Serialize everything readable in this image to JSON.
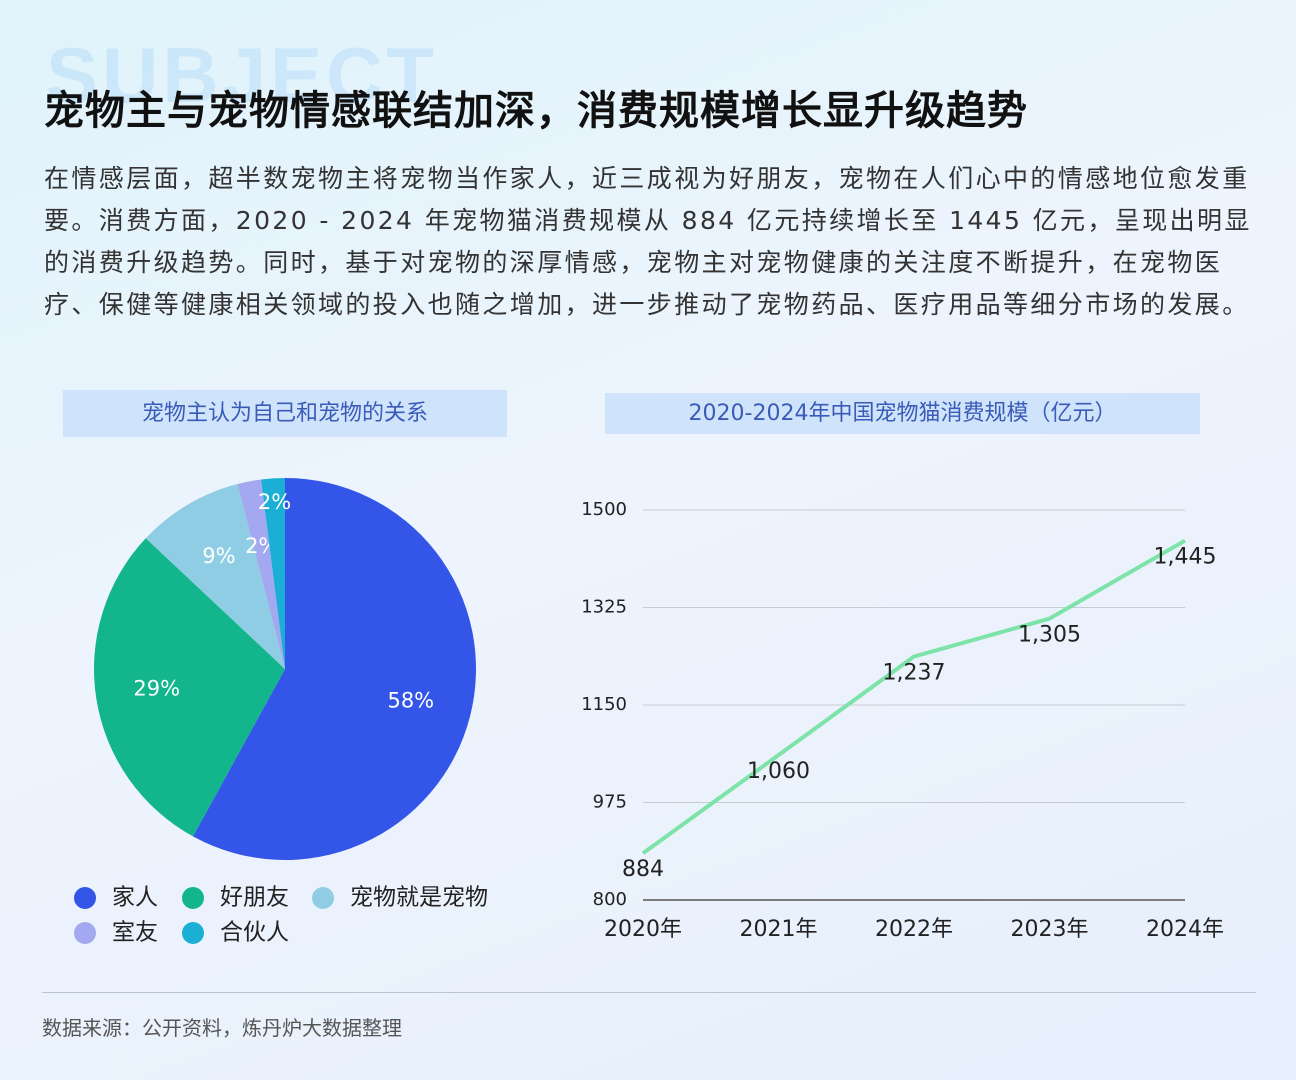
{
  "header": {
    "watermark": "SUBJECT",
    "title": "宠物主与宠物情感联结加深，消费规模增长显升级趋势",
    "paragraph": "在情感层面，超半数宠物主将宠物当作家人，近三成视为好朋友，宠物在人们心中的情感地位愈发重要。消费方面，2020 - 2024 年宠物猫消费规模从 884 亿元持续增长至 1445 亿元，呈现出明显的消费升级趋势。同时，基于对宠物的深厚情感，宠物主对宠物健康的关注度不断提升，在宠物医疗、保健等健康相关领域的投入也随之增加，进一步推动了宠物药品、医疗用品等细分市场的发展。"
  },
  "chart_data": [
    {
      "type": "pie",
      "title": "宠物主认为自己和宠物的关系",
      "categories": [
        "家人",
        "好朋友",
        "宠物就是宠物",
        "室友",
        "合伙人"
      ],
      "values": [
        58,
        29,
        9,
        2,
        2
      ],
      "value_labels": [
        "58%",
        "29%",
        "9%",
        "2%",
        "2%"
      ],
      "colors": [
        "#3355e8",
        "#13b58c",
        "#8ecde3",
        "#a3a8f0",
        "#1bafd6"
      ]
    },
    {
      "type": "line",
      "title": "2020-2024年中国宠物猫消费规模（亿元）",
      "categories": [
        "2020年",
        "2021年",
        "2022年",
        "2023年",
        "2024年"
      ],
      "values": [
        884,
        1060,
        1237,
        1305,
        1445
      ],
      "value_labels": [
        "884",
        "1,060",
        "1,237",
        "1,305",
        "1,445"
      ],
      "color": "#7de3a8",
      "ylim": [
        800,
        1500
      ],
      "yticks": [
        800,
        975,
        1150,
        1325,
        1500
      ],
      "grid": true
    }
  ],
  "footer": {
    "source": "数据来源：公开资料，炼丹炉大数据整理"
  }
}
